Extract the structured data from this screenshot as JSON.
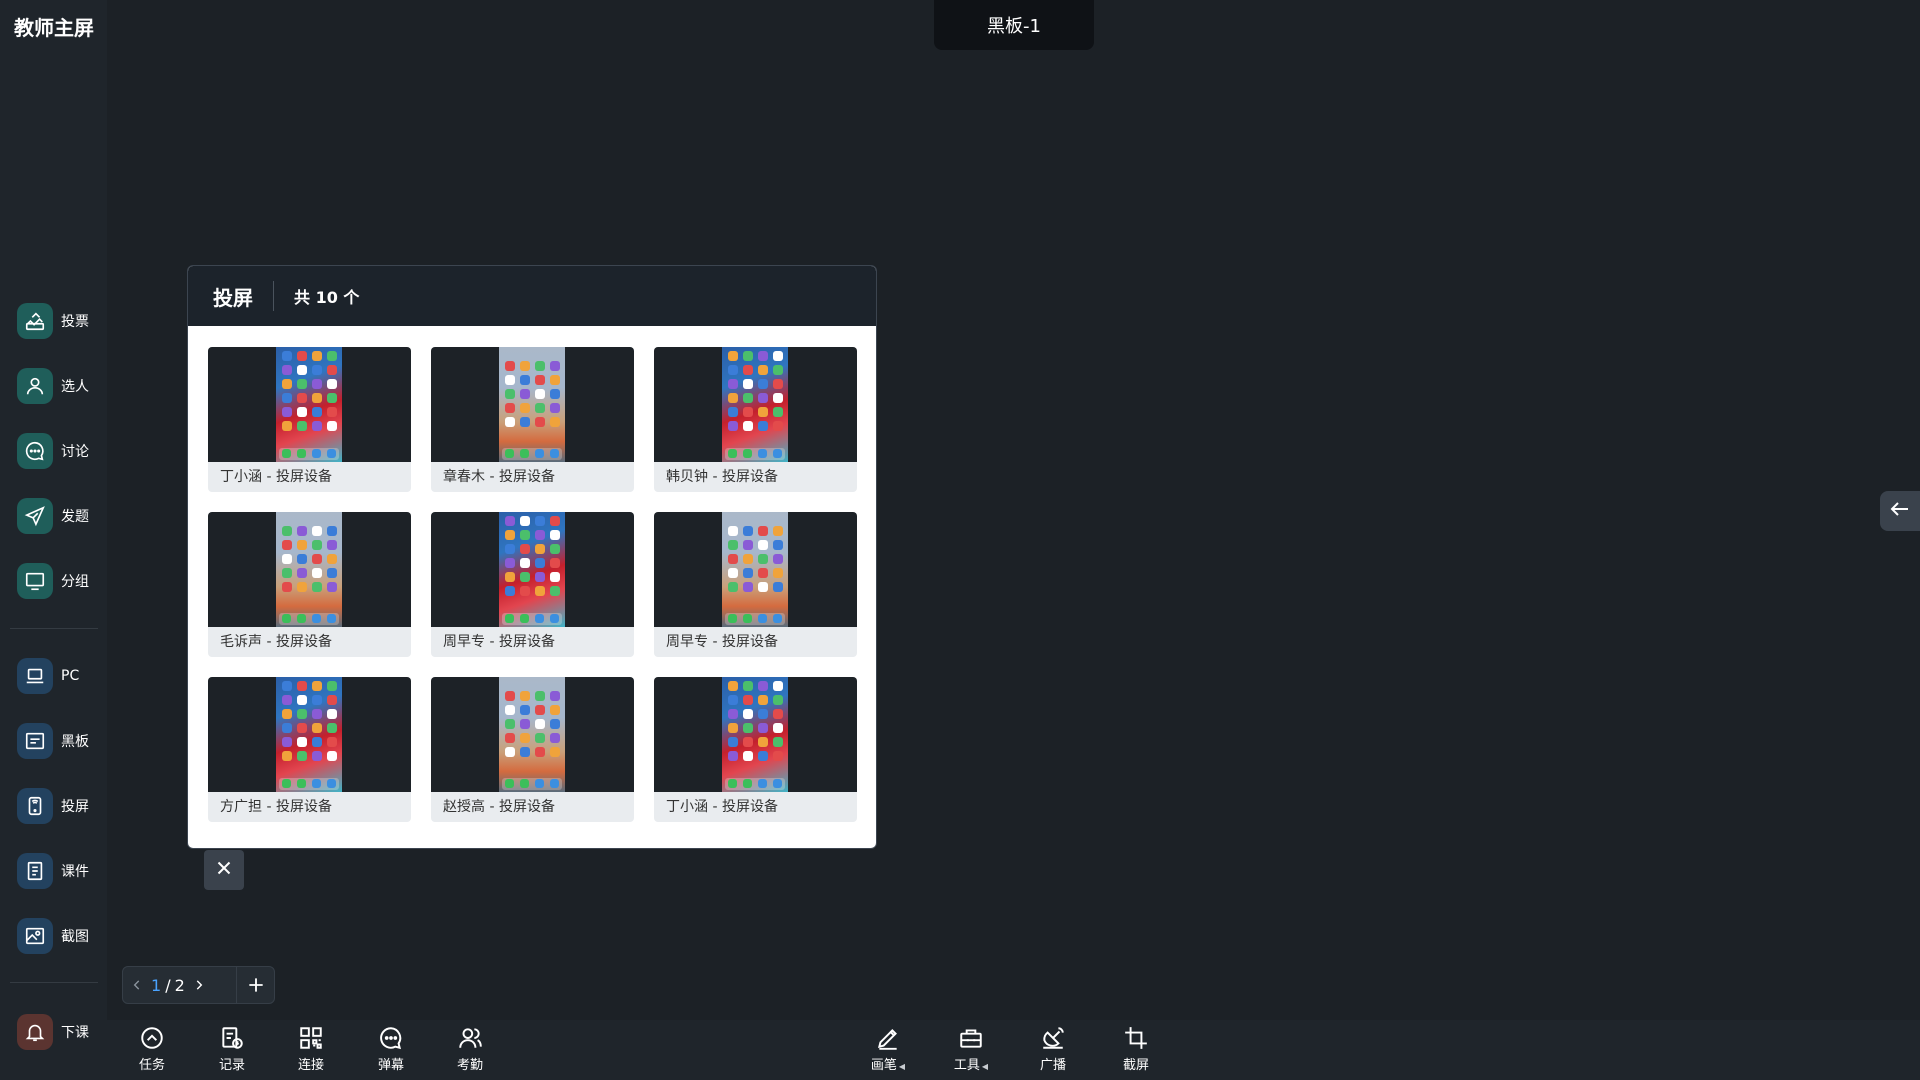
{
  "app": {
    "title": "教师主屏"
  },
  "board_tab": {
    "label": "黑板-1"
  },
  "sidebar": {
    "tools": [
      {
        "label": "投票",
        "icon": "vote-icon"
      },
      {
        "label": "选人",
        "icon": "person-icon"
      },
      {
        "label": "讨论",
        "icon": "discussion-icon"
      },
      {
        "label": "发题",
        "icon": "send-icon"
      },
      {
        "label": "分组",
        "icon": "monitor-icon"
      }
    ],
    "sources": [
      {
        "label": "PC",
        "icon": "laptop-icon"
      },
      {
        "label": "黑板",
        "icon": "board-icon"
      },
      {
        "label": "投屏",
        "icon": "phone-cast-icon"
      },
      {
        "label": "课件",
        "icon": "courseware-icon"
      },
      {
        "label": "截图",
        "icon": "image-icon"
      }
    ],
    "end_class": {
      "label": "下课",
      "icon": "bell-icon"
    }
  },
  "panel": {
    "title": "投屏",
    "count": "共 10 个",
    "devices": [
      {
        "name": "丁小涵 - 投屏设备",
        "theme": "colorful"
      },
      {
        "name": "章春木 - 投屏设备",
        "theme": "pastel"
      },
      {
        "name": "韩贝钟 - 投屏设备",
        "theme": "colorful"
      },
      {
        "name": "毛诉声 - 投屏设备",
        "theme": "pastel"
      },
      {
        "name": "周早专 - 投屏设备",
        "theme": "colorful"
      },
      {
        "name": "周早专 - 投屏设备",
        "theme": "pastel"
      },
      {
        "name": "方广担 - 投屏设备",
        "theme": "colorful"
      },
      {
        "name": "赵授高 - 投屏设备",
        "theme": "pastel"
      },
      {
        "name": "丁小涵 - 投屏设备",
        "theme": "colorful"
      }
    ]
  },
  "pager": {
    "current": "1",
    "separator": "/",
    "total": "2"
  },
  "toolbar": {
    "left": [
      {
        "label": "任务",
        "icon": "task-icon"
      },
      {
        "label": "记录",
        "icon": "record-icon"
      },
      {
        "label": "连接",
        "icon": "qrcode-icon"
      },
      {
        "label": "弹幕",
        "icon": "danmaku-icon"
      },
      {
        "label": "考勤",
        "icon": "attendance-icon"
      }
    ],
    "right": [
      {
        "label": "画笔",
        "icon": "pen-icon",
        "caret": true
      },
      {
        "label": "工具",
        "icon": "toolbox-icon",
        "caret": true
      },
      {
        "label": "广播",
        "icon": "broadcast-icon",
        "caret": false
      },
      {
        "label": "截屏",
        "icon": "crop-icon",
        "caret": false
      }
    ]
  },
  "colors": {
    "accent": "#4aa3ff",
    "teal": "#1f5e5a",
    "blue": "#23425f",
    "red": "#5b3430"
  }
}
